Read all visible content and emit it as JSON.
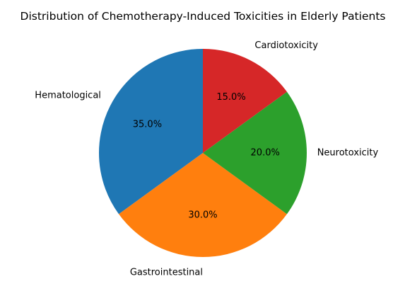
{
  "chart_data": {
    "type": "pie",
    "title": "Distribution of Chemotherapy-Induced Toxicities in Elderly Patients",
    "categories": [
      "Hematological",
      "Gastrointestinal",
      "Neurotoxicity",
      "Cardiotoxicity"
    ],
    "values": [
      35.0,
      30.0,
      20.0,
      15.0
    ],
    "value_labels": [
      "35.0%",
      "30.0%",
      "20.0%",
      "15.0%"
    ],
    "colors": [
      "#1f77b4",
      "#ff7f0e",
      "#2ca02c",
      "#d62728"
    ],
    "start_angle": 90,
    "direction": "counterclockwise",
    "legend": "none"
  }
}
